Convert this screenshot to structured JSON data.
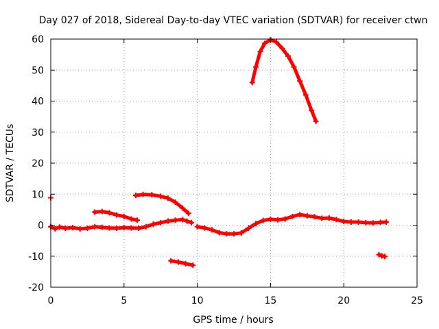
{
  "chart_data": {
    "type": "scatter",
    "title": "Day 027 of 2018, Sidereal Day-to-day VTEC variation (SDTVAR) for receiver ctwn",
    "xlabel": "GPS time / hours",
    "ylabel": "SDTVAR / TECUs",
    "xlim": [
      0,
      25
    ],
    "ylim": [
      -20,
      60
    ],
    "xticks": [
      0,
      5,
      10,
      15,
      20,
      25
    ],
    "yticks": [
      -20,
      -10,
      0,
      10,
      20,
      30,
      40,
      50,
      60
    ],
    "grid": true,
    "marker": "+",
    "color": "#ff0000",
    "series": [
      {
        "name": "arc-isolated-start",
        "points": [
          [
            0.0,
            8.8
          ]
        ]
      },
      {
        "name": "arc-baseline-1",
        "points": [
          [
            0.0,
            -0.5
          ],
          [
            0.3,
            -1.2
          ],
          [
            0.6,
            -0.6
          ],
          [
            1.0,
            -1.0
          ],
          [
            1.5,
            -0.8
          ],
          [
            2.0,
            -1.2
          ],
          [
            2.5,
            -1.0
          ],
          [
            3.0,
            -0.5
          ],
          [
            3.5,
            -0.7
          ],
          [
            4.0,
            -0.9
          ],
          [
            4.5,
            -1.0
          ],
          [
            5.0,
            -0.8
          ],
          [
            5.5,
            -0.9
          ],
          [
            6.0,
            -1.0
          ],
          [
            6.5,
            -0.5
          ],
          [
            7.0,
            0.3
          ],
          [
            7.5,
            0.8
          ],
          [
            8.0,
            1.3
          ],
          [
            8.5,
            1.6
          ],
          [
            9.0,
            1.8
          ],
          [
            9.3,
            1.3
          ],
          [
            9.6,
            0.8
          ]
        ]
      },
      {
        "name": "arc-upper-left",
        "points": [
          [
            3.0,
            4.2
          ],
          [
            3.5,
            4.4
          ],
          [
            4.0,
            4.0
          ],
          [
            4.5,
            3.3
          ],
          [
            5.0,
            2.8
          ],
          [
            5.5,
            2.0
          ],
          [
            5.9,
            1.6
          ]
        ]
      },
      {
        "name": "arc-plateau",
        "points": [
          [
            5.8,
            9.6
          ],
          [
            6.3,
            9.9
          ],
          [
            6.9,
            9.8
          ],
          [
            7.5,
            9.3
          ],
          [
            8.0,
            8.7
          ],
          [
            8.5,
            7.4
          ],
          [
            9.0,
            5.5
          ],
          [
            9.4,
            3.8
          ]
        ]
      },
      {
        "name": "arc-negative-mid",
        "points": [
          [
            8.2,
            -11.5
          ],
          [
            8.7,
            -11.9
          ],
          [
            9.2,
            -12.4
          ],
          [
            9.7,
            -12.9
          ]
        ]
      },
      {
        "name": "arc-dip",
        "points": [
          [
            10.0,
            -0.5
          ],
          [
            10.5,
            -0.9
          ],
          [
            11.0,
            -1.5
          ],
          [
            11.5,
            -2.4
          ],
          [
            12.0,
            -2.8
          ],
          [
            12.5,
            -2.8
          ],
          [
            13.0,
            -2.5
          ],
          [
            13.5,
            -1.0
          ],
          [
            14.0,
            0.5
          ],
          [
            14.5,
            1.5
          ],
          [
            15.0,
            1.9
          ],
          [
            15.5,
            1.7
          ],
          [
            16.0,
            2.0
          ],
          [
            16.5,
            2.8
          ],
          [
            17.0,
            3.4
          ],
          [
            17.5,
            3.0
          ],
          [
            18.0,
            2.7
          ],
          [
            18.5,
            2.2
          ],
          [
            19.0,
            2.3
          ],
          [
            19.5,
            1.8
          ],
          [
            20.0,
            1.2
          ],
          [
            20.5,
            1.0
          ],
          [
            21.0,
            1.0
          ],
          [
            21.5,
            0.8
          ],
          [
            22.0,
            0.7
          ],
          [
            22.5,
            0.9
          ],
          [
            22.9,
            1.0
          ]
        ]
      },
      {
        "name": "arc-peak",
        "points": [
          [
            13.75,
            46
          ],
          [
            14.0,
            51
          ],
          [
            14.3,
            56
          ],
          [
            14.6,
            58.6
          ],
          [
            15.0,
            59.8
          ],
          [
            15.4,
            59.0
          ],
          [
            15.8,
            57.0
          ],
          [
            16.2,
            54.5
          ],
          [
            16.6,
            51.0
          ],
          [
            17.0,
            46.5
          ],
          [
            17.4,
            42.0
          ],
          [
            17.8,
            37.0
          ],
          [
            18.1,
            33.5
          ]
        ]
      },
      {
        "name": "arc-late-negative",
        "points": [
          [
            22.4,
            -9.5
          ],
          [
            22.6,
            -9.9
          ],
          [
            22.8,
            -10.1
          ]
        ]
      }
    ]
  }
}
